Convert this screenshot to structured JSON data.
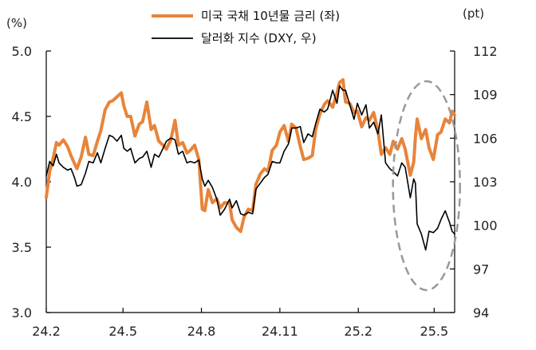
{
  "chart_data": {
    "type": "line",
    "title": "",
    "xlabel": "",
    "left_unit": "(%)",
    "right_unit": "(pt)",
    "xlim": [
      "2024-02-01",
      "2025-05-25"
    ],
    "x_ticks": [
      {
        "label": "24.2",
        "date": "2024-02-01"
      },
      {
        "label": "24.5",
        "date": "2024-05-01"
      },
      {
        "label": "24.8",
        "date": "2024-08-01"
      },
      {
        "label": "24.11",
        "date": "2024-11-01"
      },
      {
        "label": "25.2",
        "date": "2025-02-01"
      },
      {
        "label": "25.5",
        "date": "2025-05-01"
      }
    ],
    "y_left": {
      "lim": [
        3.0,
        5.0
      ],
      "ticks": [
        "3.0",
        "3.5",
        "4.0",
        "4.5",
        "5.0"
      ]
    },
    "y_right": {
      "lim": [
        94,
        112
      ],
      "ticks": [
        "94",
        "97",
        "100",
        "103",
        "106",
        "109",
        "112"
      ]
    },
    "grid": false,
    "legend_position": "top",
    "series": [
      {
        "name": "미국 국채 10년물 금리 (좌)",
        "axis": "left",
        "color": "#E8843A",
        "points": [
          [
            "2024-02-01",
            3.88
          ],
          [
            "2024-02-05",
            4.08
          ],
          [
            "2024-02-09",
            4.18
          ],
          [
            "2024-02-13",
            4.3
          ],
          [
            "2024-02-16",
            4.28
          ],
          [
            "2024-02-21",
            4.32
          ],
          [
            "2024-02-26",
            4.27
          ],
          [
            "2024-03-01",
            4.2
          ],
          [
            "2024-03-05",
            4.14
          ],
          [
            "2024-03-08",
            4.1
          ],
          [
            "2024-03-13",
            4.19
          ],
          [
            "2024-03-18",
            4.34
          ],
          [
            "2024-03-22",
            4.21
          ],
          [
            "2024-03-27",
            4.2
          ],
          [
            "2024-04-01",
            4.31
          ],
          [
            "2024-04-05",
            4.39
          ],
          [
            "2024-04-10",
            4.55
          ],
          [
            "2024-04-15",
            4.61
          ],
          [
            "2024-04-19",
            4.62
          ],
          [
            "2024-04-24",
            4.65
          ],
          [
            "2024-04-29",
            4.68
          ],
          [
            "2024-05-02",
            4.58
          ],
          [
            "2024-05-06",
            4.5
          ],
          [
            "2024-05-10",
            4.5
          ],
          [
            "2024-05-15",
            4.35
          ],
          [
            "2024-05-20",
            4.44
          ],
          [
            "2024-05-24",
            4.46
          ],
          [
            "2024-05-29",
            4.61
          ],
          [
            "2024-06-03",
            4.4
          ],
          [
            "2024-06-07",
            4.43
          ],
          [
            "2024-06-12",
            4.31
          ],
          [
            "2024-06-17",
            4.28
          ],
          [
            "2024-06-21",
            4.25
          ],
          [
            "2024-06-26",
            4.32
          ],
          [
            "2024-07-01",
            4.47
          ],
          [
            "2024-07-05",
            4.28
          ],
          [
            "2024-07-10",
            4.3
          ],
          [
            "2024-07-15",
            4.22
          ],
          [
            "2024-07-19",
            4.24
          ],
          [
            "2024-07-24",
            4.28
          ],
          [
            "2024-07-29",
            4.17
          ],
          [
            "2024-08-02",
            3.79
          ],
          [
            "2024-08-05",
            3.78
          ],
          [
            "2024-08-09",
            3.94
          ],
          [
            "2024-08-14",
            3.84
          ],
          [
            "2024-08-19",
            3.87
          ],
          [
            "2024-08-23",
            3.8
          ],
          [
            "2024-08-28",
            3.84
          ],
          [
            "2024-09-03",
            3.84
          ],
          [
            "2024-09-06",
            3.71
          ],
          [
            "2024-09-11",
            3.65
          ],
          [
            "2024-09-16",
            3.62
          ],
          [
            "2024-09-20",
            3.73
          ],
          [
            "2024-09-25",
            3.79
          ],
          [
            "2024-09-30",
            3.78
          ],
          [
            "2024-10-04",
            3.98
          ],
          [
            "2024-10-09",
            4.06
          ],
          [
            "2024-10-14",
            4.1
          ],
          [
            "2024-10-18",
            4.08
          ],
          [
            "2024-10-23",
            4.24
          ],
          [
            "2024-10-28",
            4.28
          ],
          [
            "2024-11-01",
            4.38
          ],
          [
            "2024-11-06",
            4.43
          ],
          [
            "2024-11-11",
            4.31
          ],
          [
            "2024-11-15",
            4.44
          ],
          [
            "2024-11-20",
            4.41
          ],
          [
            "2024-11-25",
            4.27
          ],
          [
            "2024-11-29",
            4.17
          ],
          [
            "2024-12-04",
            4.18
          ],
          [
            "2024-12-09",
            4.2
          ],
          [
            "2024-12-13",
            4.4
          ],
          [
            "2024-12-18",
            4.52
          ],
          [
            "2024-12-23",
            4.59
          ],
          [
            "2024-12-27",
            4.62
          ],
          [
            "2025-01-02",
            4.57
          ],
          [
            "2025-01-07",
            4.68
          ],
          [
            "2025-01-10",
            4.76
          ],
          [
            "2025-01-14",
            4.78
          ],
          [
            "2025-01-17",
            4.61
          ],
          [
            "2025-01-22",
            4.6
          ],
          [
            "2025-01-27",
            4.53
          ],
          [
            "2025-01-31",
            4.54
          ],
          [
            "2025-02-05",
            4.42
          ],
          [
            "2025-02-10",
            4.49
          ],
          [
            "2025-02-14",
            4.47
          ],
          [
            "2025-02-19",
            4.53
          ],
          [
            "2025-02-24",
            4.39
          ],
          [
            "2025-02-28",
            4.21
          ],
          [
            "2025-03-05",
            4.26
          ],
          [
            "2025-03-10",
            4.21
          ],
          [
            "2025-03-14",
            4.31
          ],
          [
            "2025-03-19",
            4.25
          ],
          [
            "2025-03-24",
            4.33
          ],
          [
            "2025-03-28",
            4.25
          ],
          [
            "2025-04-03",
            4.05
          ],
          [
            "2025-04-07",
            4.15
          ],
          [
            "2025-04-09",
            4.34
          ],
          [
            "2025-04-11",
            4.48
          ],
          [
            "2025-04-16",
            4.33
          ],
          [
            "2025-04-21",
            4.4
          ],
          [
            "2025-04-25",
            4.26
          ],
          [
            "2025-04-30",
            4.17
          ],
          [
            "2025-05-05",
            4.36
          ],
          [
            "2025-05-09",
            4.38
          ],
          [
            "2025-05-14",
            4.48
          ],
          [
            "2025-05-19",
            4.45
          ],
          [
            "2025-05-22",
            4.54
          ],
          [
            "2025-05-25",
            4.51
          ]
        ]
      },
      {
        "name": "달러화 지수 (DXY, 우)",
        "axis": "right",
        "color": "#000000",
        "points": [
          [
            "2024-02-01",
            103.4
          ],
          [
            "2024-02-05",
            104.4
          ],
          [
            "2024-02-09",
            104.1
          ],
          [
            "2024-02-13",
            104.9
          ],
          [
            "2024-02-16",
            104.3
          ],
          [
            "2024-02-21",
            104.0
          ],
          [
            "2024-02-26",
            103.8
          ],
          [
            "2024-03-01",
            103.9
          ],
          [
            "2024-03-05",
            103.3
          ],
          [
            "2024-03-08",
            102.7
          ],
          [
            "2024-03-13",
            102.8
          ],
          [
            "2024-03-18",
            103.6
          ],
          [
            "2024-03-22",
            104.4
          ],
          [
            "2024-03-27",
            104.3
          ],
          [
            "2024-04-01",
            105.0
          ],
          [
            "2024-04-05",
            104.3
          ],
          [
            "2024-04-10",
            105.3
          ],
          [
            "2024-04-15",
            106.2
          ],
          [
            "2024-04-19",
            106.1
          ],
          [
            "2024-04-24",
            105.8
          ],
          [
            "2024-04-29",
            106.2
          ],
          [
            "2024-05-02",
            105.3
          ],
          [
            "2024-05-06",
            105.1
          ],
          [
            "2024-05-10",
            105.3
          ],
          [
            "2024-05-15",
            104.3
          ],
          [
            "2024-05-20",
            104.6
          ],
          [
            "2024-05-24",
            104.7
          ],
          [
            "2024-05-29",
            105.1
          ],
          [
            "2024-06-03",
            104.0
          ],
          [
            "2024-06-07",
            104.9
          ],
          [
            "2024-06-12",
            104.7
          ],
          [
            "2024-06-17",
            105.3
          ],
          [
            "2024-06-21",
            105.8
          ],
          [
            "2024-06-26",
            106.0
          ],
          [
            "2024-07-01",
            105.9
          ],
          [
            "2024-07-05",
            104.9
          ],
          [
            "2024-07-10",
            105.1
          ],
          [
            "2024-07-15",
            104.3
          ],
          [
            "2024-07-19",
            104.4
          ],
          [
            "2024-07-24",
            104.3
          ],
          [
            "2024-07-29",
            104.5
          ],
          [
            "2024-08-02",
            103.2
          ],
          [
            "2024-08-05",
            102.7
          ],
          [
            "2024-08-09",
            103.1
          ],
          [
            "2024-08-14",
            102.6
          ],
          [
            "2024-08-19",
            101.8
          ],
          [
            "2024-08-23",
            100.7
          ],
          [
            "2024-08-28",
            101.1
          ],
          [
            "2024-09-03",
            101.8
          ],
          [
            "2024-09-06",
            101.2
          ],
          [
            "2024-09-11",
            101.7
          ],
          [
            "2024-09-16",
            100.8
          ],
          [
            "2024-09-20",
            100.7
          ],
          [
            "2024-09-25",
            100.9
          ],
          [
            "2024-09-30",
            100.8
          ],
          [
            "2024-10-04",
            102.5
          ],
          [
            "2024-10-09",
            102.9
          ],
          [
            "2024-10-14",
            103.3
          ],
          [
            "2024-10-18",
            103.5
          ],
          [
            "2024-10-23",
            104.4
          ],
          [
            "2024-10-28",
            104.3
          ],
          [
            "2024-11-01",
            104.3
          ],
          [
            "2024-11-06",
            105.1
          ],
          [
            "2024-11-11",
            105.6
          ],
          [
            "2024-11-15",
            106.7
          ],
          [
            "2024-11-20",
            106.7
          ],
          [
            "2024-11-25",
            106.8
          ],
          [
            "2024-11-29",
            105.7
          ],
          [
            "2024-12-04",
            106.3
          ],
          [
            "2024-12-09",
            106.1
          ],
          [
            "2024-12-13",
            107.0
          ],
          [
            "2024-12-18",
            108.0
          ],
          [
            "2024-12-23",
            107.8
          ],
          [
            "2024-12-27",
            108.0
          ],
          [
            "2025-01-02",
            109.3
          ],
          [
            "2025-01-07",
            108.4
          ],
          [
            "2025-01-10",
            109.6
          ],
          [
            "2025-01-14",
            109.3
          ],
          [
            "2025-01-17",
            109.3
          ],
          [
            "2025-01-22",
            108.3
          ],
          [
            "2025-01-27",
            107.3
          ],
          [
            "2025-01-31",
            108.4
          ],
          [
            "2025-02-05",
            107.6
          ],
          [
            "2025-02-10",
            108.3
          ],
          [
            "2025-02-14",
            106.7
          ],
          [
            "2025-02-19",
            107.1
          ],
          [
            "2025-02-24",
            106.3
          ],
          [
            "2025-02-28",
            107.6
          ],
          [
            "2025-03-05",
            104.3
          ],
          [
            "2025-03-10",
            103.9
          ],
          [
            "2025-03-14",
            103.7
          ],
          [
            "2025-03-19",
            103.4
          ],
          [
            "2025-03-24",
            104.3
          ],
          [
            "2025-03-28",
            104.0
          ],
          [
            "2025-04-03",
            101.9
          ],
          [
            "2025-04-07",
            103.2
          ],
          [
            "2025-04-09",
            102.9
          ],
          [
            "2025-04-11",
            100.1
          ],
          [
            "2025-04-16",
            99.4
          ],
          [
            "2025-04-21",
            98.3
          ],
          [
            "2025-04-25",
            99.6
          ],
          [
            "2025-04-30",
            99.5
          ],
          [
            "2025-05-05",
            99.8
          ],
          [
            "2025-05-09",
            100.4
          ],
          [
            "2025-05-14",
            101.0
          ],
          [
            "2025-05-19",
            100.2
          ],
          [
            "2025-05-22",
            99.6
          ],
          [
            "2025-05-25",
            99.4
          ]
        ]
      }
    ],
    "annotations": [
      {
        "type": "dashed-ellipse",
        "color": "#999999"
      }
    ]
  }
}
